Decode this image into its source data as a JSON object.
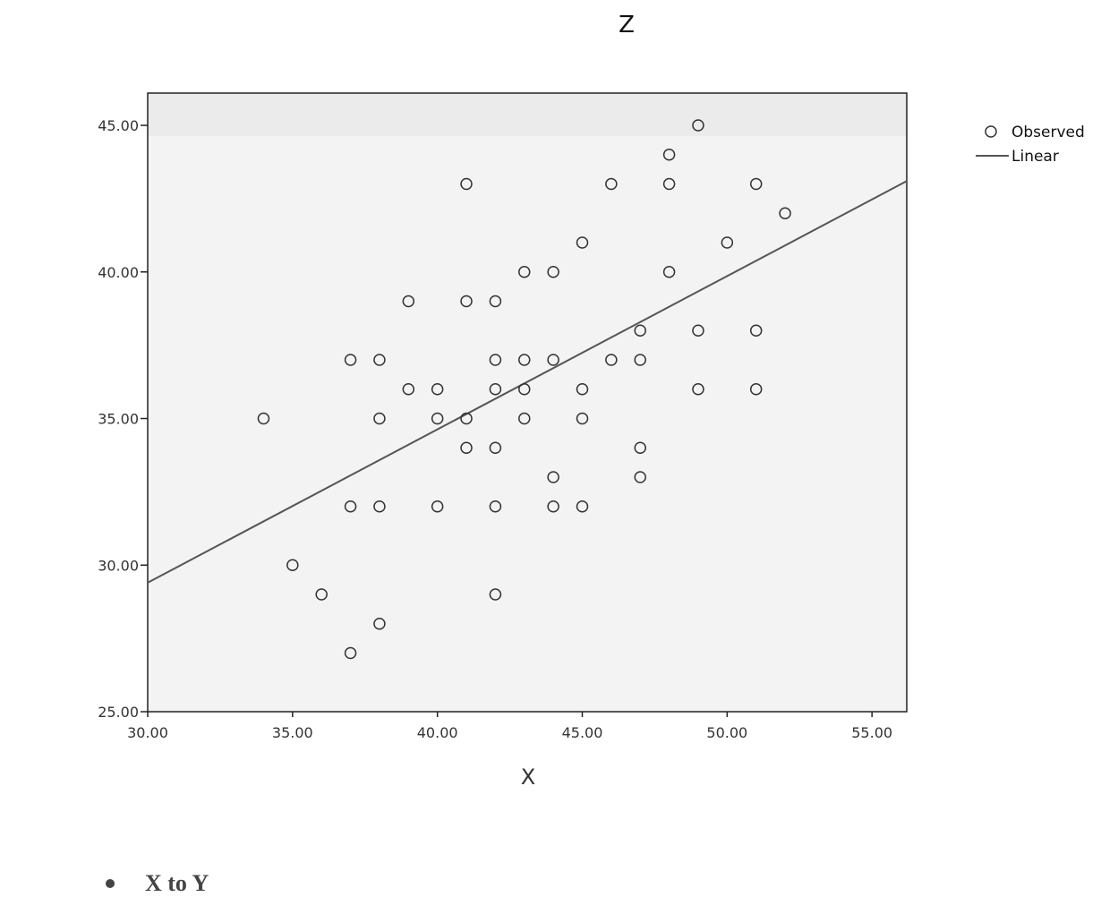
{
  "chart_data": {
    "type": "scatter",
    "title": "Z",
    "xlabel": "X",
    "ylabel": "",
    "xlim": [
      30,
      56.2
    ],
    "ylim": [
      25,
      46.1
    ],
    "x_ticks": [
      "30.00",
      "35.00",
      "40.00",
      "45.00",
      "50.00",
      "55.00"
    ],
    "y_ticks": [
      "25.00",
      "30.00",
      "35.00",
      "40.00",
      "45.00"
    ],
    "legend": {
      "position": "top-right",
      "entries": [
        "Observed",
        "Linear"
      ]
    },
    "series": [
      {
        "name": "Observed",
        "points": [
          [
            34,
            35
          ],
          [
            35,
            30
          ],
          [
            36,
            29
          ],
          [
            37,
            37
          ],
          [
            37,
            32
          ],
          [
            37,
            27
          ],
          [
            38,
            37
          ],
          [
            38,
            35
          ],
          [
            38,
            32
          ],
          [
            38,
            28
          ],
          [
            39,
            39
          ],
          [
            39,
            36
          ],
          [
            40,
            36
          ],
          [
            40,
            35
          ],
          [
            40,
            32
          ],
          [
            41,
            43
          ],
          [
            41,
            39
          ],
          [
            41,
            35
          ],
          [
            41,
            34
          ],
          [
            42,
            39
          ],
          [
            42,
            37
          ],
          [
            42,
            36
          ],
          [
            42,
            34
          ],
          [
            42,
            32
          ],
          [
            42,
            29
          ],
          [
            43,
            40
          ],
          [
            43,
            37
          ],
          [
            43,
            36
          ],
          [
            43,
            35
          ],
          [
            44,
            40
          ],
          [
            44,
            37
          ],
          [
            44,
            33
          ],
          [
            44,
            32
          ],
          [
            45,
            41
          ],
          [
            45,
            36
          ],
          [
            45,
            35
          ],
          [
            45,
            32
          ],
          [
            46,
            43
          ],
          [
            46,
            37
          ],
          [
            47,
            38
          ],
          [
            47,
            37
          ],
          [
            47,
            34
          ],
          [
            47,
            33
          ],
          [
            48,
            44
          ],
          [
            48,
            43
          ],
          [
            48,
            40
          ],
          [
            49,
            45
          ],
          [
            49,
            38
          ],
          [
            49,
            36
          ],
          [
            50,
            41
          ],
          [
            51,
            43
          ],
          [
            51,
            38
          ],
          [
            51,
            36
          ],
          [
            52,
            42
          ]
        ]
      },
      {
        "name": "Linear",
        "points": [
          [
            30,
            29.4
          ],
          [
            56.2,
            43.1
          ]
        ]
      }
    ]
  },
  "caption": {
    "text": "X to Y"
  }
}
